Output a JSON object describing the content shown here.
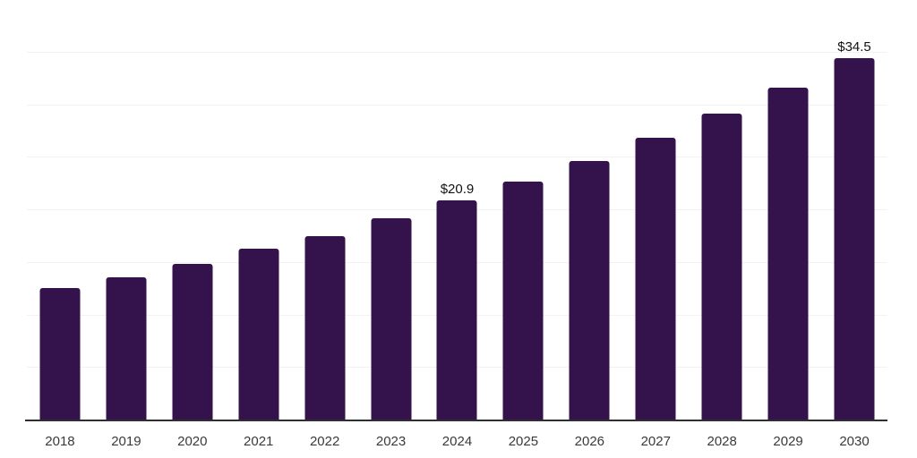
{
  "chart_data": {
    "type": "bar",
    "title": "",
    "categories": [
      "2018",
      "2019",
      "2020",
      "2021",
      "2022",
      "2023",
      "2024",
      "2025",
      "2026",
      "2027",
      "2028",
      "2029",
      "2030"
    ],
    "values": [
      12.6,
      13.6,
      14.9,
      16.3,
      17.5,
      19.2,
      20.9,
      22.7,
      24.7,
      26.9,
      29.2,
      31.7,
      34.5
    ],
    "data_labels": [
      "",
      "",
      "",
      "",
      "",
      "",
      "$20.9",
      "",
      "",
      "",
      "",
      "",
      "$34.5"
    ],
    "xlabel": "",
    "ylabel": "",
    "ylim": [
      0,
      40
    ],
    "gridline_step": 5,
    "grid": "horizontal",
    "legend": "none",
    "colors": {
      "bar": "#34134d",
      "axis_line": "#2f2f2f",
      "gridline": "#f2f2f2",
      "x_tick_label": "#3a3a3a",
      "value_label": "#111111",
      "background": "#ffffff"
    }
  }
}
